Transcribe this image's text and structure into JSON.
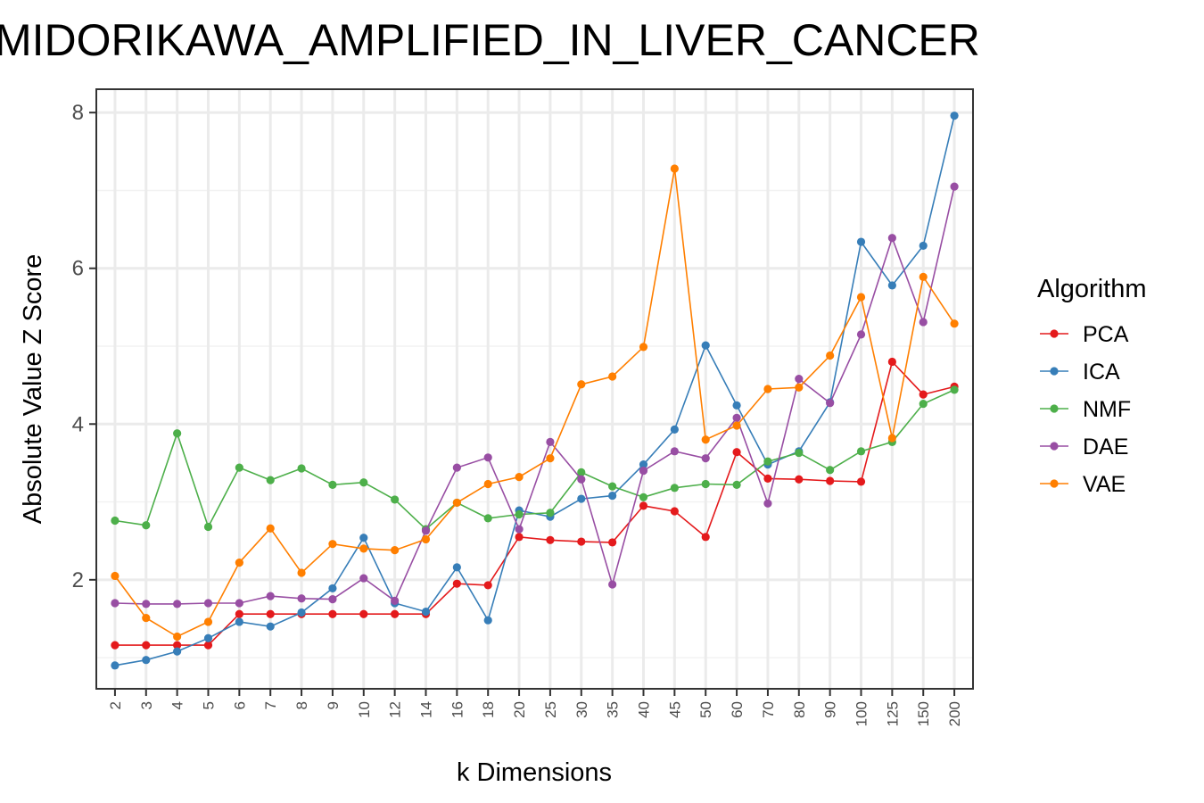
{
  "chart_data": {
    "type": "line",
    "title": "MIDORIKAWA_AMPLIFIED_IN_LIVER_CANCER",
    "xlabel": "k Dimensions",
    "ylabel": "Absolute Value Z Score",
    "ylim": [
      0.6,
      8.3
    ],
    "yticks": [
      2,
      4,
      6,
      8
    ],
    "grid": true,
    "legend_title": "Algorithm",
    "legend_position": "right",
    "categories": [
      "2",
      "3",
      "4",
      "5",
      "6",
      "7",
      "8",
      "9",
      "10",
      "12",
      "14",
      "16",
      "18",
      "20",
      "25",
      "30",
      "35",
      "40",
      "45",
      "50",
      "60",
      "70",
      "80",
      "90",
      "100",
      "125",
      "150",
      "200"
    ],
    "series": [
      {
        "name": "PCA",
        "color": "#e41a1c",
        "values": [
          1.16,
          1.16,
          1.16,
          1.16,
          1.56,
          1.56,
          1.56,
          1.56,
          1.56,
          1.56,
          1.56,
          1.95,
          1.93,
          2.55,
          2.51,
          2.49,
          2.48,
          2.95,
          2.88,
          2.55,
          3.64,
          3.3,
          3.29,
          3.27,
          3.26,
          4.8,
          4.38,
          4.48
        ]
      },
      {
        "name": "ICA",
        "color": "#377eb8",
        "values": [
          0.9,
          0.97,
          1.08,
          1.25,
          1.46,
          1.4,
          1.58,
          1.89,
          2.54,
          1.7,
          1.59,
          2.16,
          1.48,
          2.89,
          2.81,
          3.04,
          3.08,
          3.48,
          3.93,
          5.01,
          4.24,
          3.48,
          3.65,
          4.28,
          6.34,
          5.78,
          6.29,
          7.96
        ]
      },
      {
        "name": "NMF",
        "color": "#4daf4a",
        "values": [
          2.76,
          2.7,
          3.88,
          2.68,
          3.44,
          3.28,
          3.43,
          3.22,
          3.25,
          3.03,
          2.65,
          2.99,
          2.79,
          2.84,
          2.86,
          3.38,
          3.2,
          3.06,
          3.18,
          3.23,
          3.22,
          3.52,
          3.63,
          3.41,
          3.65,
          3.77,
          4.26,
          4.44
        ]
      },
      {
        "name": "DAE",
        "color": "#984ea3",
        "values": [
          1.7,
          1.69,
          1.69,
          1.7,
          1.7,
          1.79,
          1.76,
          1.75,
          2.02,
          1.73,
          2.63,
          3.44,
          3.57,
          2.65,
          3.77,
          3.29,
          1.94,
          3.4,
          3.65,
          3.56,
          4.08,
          2.98,
          4.58,
          4.27,
          5.15,
          6.39,
          5.31,
          7.05
        ]
      },
      {
        "name": "VAE",
        "color": "#ff7f00",
        "values": [
          2.05,
          1.51,
          1.27,
          1.46,
          2.22,
          2.66,
          2.09,
          2.46,
          2.4,
          2.38,
          2.52,
          2.99,
          3.23,
          3.32,
          3.56,
          4.51,
          4.61,
          4.99,
          7.28,
          3.8,
          3.98,
          4.45,
          4.47,
          4.88,
          5.63,
          3.82,
          5.89,
          5.29
        ]
      }
    ]
  }
}
